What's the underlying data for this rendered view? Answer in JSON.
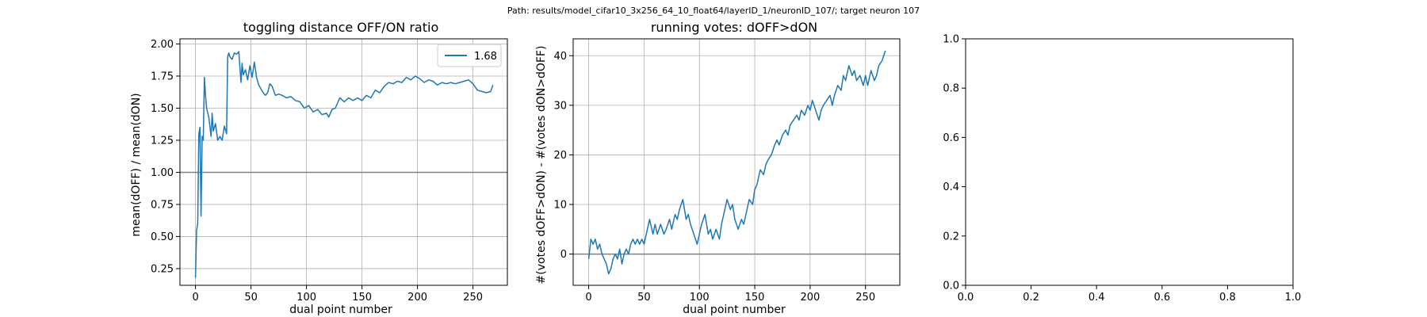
{
  "figure": {
    "suptitle": "Path: results/model_cifar10_3x256_64_10_float64/layerID_1/neuronID_107/; target neuron 107",
    "line_color": "#1f77b4",
    "hline_color": "#808080",
    "grid_color": "#b0b0b0"
  },
  "chart_data": [
    {
      "type": "line",
      "title": "toggling distance OFF/ON ratio",
      "xlabel": "dual point number",
      "ylabel": "mean(dOFF) / mean(dON)",
      "xlim": [
        -14,
        281
      ],
      "ylim": [
        0.12,
        2.04
      ],
      "xticks": [
        0,
        50,
        100,
        150,
        200,
        250
      ],
      "yticks": [
        0.25,
        0.5,
        0.75,
        1.0,
        1.25,
        1.5,
        1.75,
        2.0
      ],
      "ytick_labels": [
        "0.25",
        "0.50",
        "0.75",
        "1.00",
        "1.25",
        "1.50",
        "1.75",
        "2.00"
      ],
      "grid": true,
      "hline": 1.0,
      "legend": {
        "position": "top-right",
        "entries": [
          "1.68"
        ]
      },
      "series": [
        {
          "name": "1.68",
          "x": [
            0,
            1,
            2,
            3,
            4,
            5,
            6,
            7,
            8,
            9,
            10,
            12,
            14,
            15,
            16,
            18,
            20,
            22,
            24,
            26,
            28,
            29,
            30,
            31,
            33,
            35,
            37,
            39,
            41,
            42,
            43,
            45,
            47,
            49,
            51,
            53,
            55,
            57,
            59,
            61,
            63,
            65,
            67,
            69,
            72,
            75,
            78,
            82,
            86,
            90,
            94,
            98,
            102,
            106,
            110,
            114,
            118,
            120,
            123,
            126,
            130,
            134,
            138,
            142,
            146,
            150,
            154,
            158,
            162,
            166,
            170,
            174,
            178,
            182,
            186,
            190,
            194,
            198,
            202,
            206,
            210,
            214,
            218,
            222,
            226,
            230,
            234,
            238,
            242,
            246,
            250,
            254,
            258,
            262,
            266,
            268
          ],
          "y": [
            0.18,
            0.55,
            0.6,
            1.3,
            1.35,
            0.66,
            1.28,
            1.25,
            1.74,
            1.6,
            1.5,
            1.43,
            1.28,
            1.46,
            1.32,
            1.38,
            1.25,
            1.28,
            1.25,
            1.36,
            1.3,
            1.9,
            1.93,
            1.9,
            1.88,
            1.93,
            1.92,
            1.94,
            1.7,
            1.85,
            1.76,
            1.8,
            1.72,
            1.83,
            1.74,
            1.86,
            1.74,
            1.68,
            1.65,
            1.62,
            1.6,
            1.62,
            1.69,
            1.67,
            1.6,
            1.61,
            1.6,
            1.58,
            1.59,
            1.56,
            1.55,
            1.5,
            1.52,
            1.47,
            1.49,
            1.45,
            1.46,
            1.43,
            1.49,
            1.5,
            1.58,
            1.55,
            1.58,
            1.56,
            1.58,
            1.56,
            1.6,
            1.58,
            1.64,
            1.62,
            1.67,
            1.7,
            1.69,
            1.71,
            1.7,
            1.74,
            1.72,
            1.75,
            1.73,
            1.7,
            1.72,
            1.71,
            1.68,
            1.7,
            1.69,
            1.7,
            1.69,
            1.7,
            1.71,
            1.72,
            1.69,
            1.64,
            1.63,
            1.62,
            1.63,
            1.68
          ]
        }
      ]
    },
    {
      "type": "line",
      "title": "running votes: dOFF>dON",
      "xlabel": "dual point number",
      "ylabel": "#(votes dOFF>dON) - #(votes dON>dOFF)",
      "xlim": [
        -14,
        281
      ],
      "ylim": [
        -6.3,
        43.4
      ],
      "xticks": [
        0,
        50,
        100,
        150,
        200,
        250
      ],
      "yticks": [
        0,
        10,
        20,
        30,
        40
      ],
      "grid": true,
      "hline": 0,
      "series": [
        {
          "x": [
            0,
            2,
            4,
            6,
            8,
            10,
            12,
            14,
            16,
            18,
            20,
            22,
            24,
            26,
            28,
            30,
            32,
            34,
            36,
            38,
            40,
            42,
            44,
            46,
            48,
            50,
            52,
            55,
            58,
            60,
            62,
            65,
            68,
            70,
            73,
            75,
            78,
            80,
            82,
            85,
            88,
            90,
            92,
            95,
            98,
            100,
            102,
            105,
            108,
            110,
            112,
            115,
            118,
            120,
            122,
            125,
            128,
            130,
            132,
            135,
            138,
            140,
            142,
            145,
            148,
            150,
            152,
            155,
            158,
            160,
            162,
            165,
            168,
            170,
            172,
            175,
            178,
            180,
            182,
            185,
            188,
            190,
            192,
            195,
            198,
            200,
            202,
            205,
            208,
            210,
            212,
            215,
            218,
            220,
            222,
            225,
            228,
            230,
            232,
            235,
            238,
            240,
            242,
            245,
            248,
            250,
            252,
            255,
            258,
            260,
            262,
            265,
            268
          ],
          "y": [
            -1,
            3,
            2,
            3,
            1,
            2,
            0,
            -1,
            -2,
            -4,
            -3,
            -1,
            0,
            -1,
            1,
            -2,
            0,
            1,
            0,
            2,
            3,
            2,
            3,
            2,
            3,
            2,
            4,
            7,
            4,
            6,
            4,
            6,
            4,
            5,
            7,
            5,
            8,
            7,
            9,
            11,
            7,
            8,
            6,
            4,
            2,
            4,
            6,
            8,
            4,
            5,
            3,
            5,
            3,
            6,
            8,
            11,
            9,
            10,
            7,
            5,
            7,
            6,
            8,
            11,
            10,
            13,
            14,
            17,
            16,
            18,
            19,
            20,
            22,
            23,
            22,
            24,
            25,
            24,
            26,
            27,
            28,
            27,
            29,
            28,
            30,
            29,
            31,
            29,
            27,
            29,
            30,
            31,
            32,
            30,
            32,
            34,
            33,
            36,
            35,
            38,
            36,
            37,
            35,
            36,
            34,
            36,
            34,
            37,
            35,
            36,
            38,
            39,
            41
          ]
        }
      ]
    },
    {
      "type": "line",
      "title": "",
      "xlabel": "",
      "ylabel": "",
      "xlim": [
        0,
        1
      ],
      "ylim": [
        0,
        1
      ],
      "xticks": [
        0.0,
        0.2,
        0.4,
        0.6,
        0.8,
        1.0
      ],
      "yticks": [
        0.0,
        0.2,
        0.4,
        0.6,
        0.8,
        1.0
      ],
      "xtick_labels": [
        "0.0",
        "0.2",
        "0.4",
        "0.6",
        "0.8",
        "1.0"
      ],
      "ytick_labels": [
        "0.0",
        "0.2",
        "0.4",
        "0.6",
        "0.8",
        "1.0"
      ],
      "grid": false,
      "series": []
    }
  ]
}
